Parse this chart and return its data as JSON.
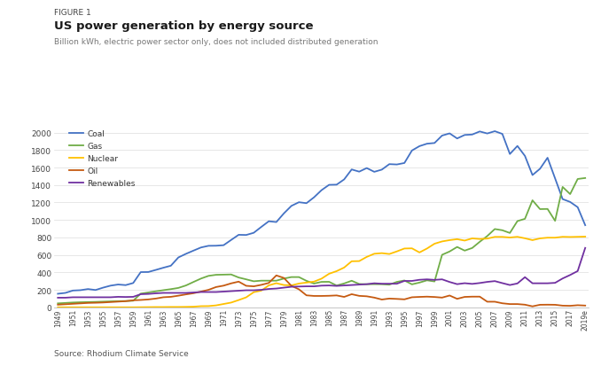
{
  "years": [
    1949,
    1950,
    1951,
    1952,
    1953,
    1954,
    1955,
    1956,
    1957,
    1958,
    1959,
    1960,
    1961,
    1962,
    1963,
    1964,
    1965,
    1966,
    1967,
    1968,
    1969,
    1970,
    1971,
    1972,
    1973,
    1974,
    1975,
    1976,
    1977,
    1978,
    1979,
    1980,
    1981,
    1982,
    1983,
    1984,
    1985,
    1986,
    1987,
    1988,
    1989,
    1990,
    1991,
    1992,
    1993,
    1994,
    1995,
    1996,
    1997,
    1998,
    1999,
    2000,
    2001,
    2002,
    2003,
    2004,
    2005,
    2006,
    2007,
    2008,
    2009,
    2010,
    2011,
    2012,
    2013,
    2014,
    2015,
    2016,
    2017,
    2018,
    "2019e"
  ],
  "coal": [
    155,
    165,
    192,
    196,
    209,
    198,
    225,
    248,
    261,
    254,
    278,
    403,
    404,
    428,
    453,
    476,
    571,
    612,
    649,
    685,
    704,
    705,
    711,
    771,
    830,
    828,
    853,
    920,
    985,
    976,
    1075,
    1161,
    1203,
    1192,
    1259,
    1341,
    1402,
    1404,
    1464,
    1578,
    1553,
    1594,
    1551,
    1576,
    1639,
    1635,
    1652,
    1795,
    1845,
    1873,
    1881,
    1966,
    1991,
    1933,
    1973,
    1978,
    2013,
    1990,
    2016,
    1985,
    1755,
    1847,
    1733,
    1514,
    1586,
    1712,
    1476,
    1239,
    1206,
    1146,
    940
  ],
  "gas": [
    45,
    50,
    55,
    58,
    60,
    62,
    65,
    68,
    70,
    72,
    75,
    157,
    170,
    183,
    196,
    208,
    222,
    250,
    290,
    329,
    360,
    372,
    374,
    376,
    341,
    320,
    298,
    305,
    305,
    305,
    329,
    346,
    346,
    303,
    272,
    291,
    292,
    249,
    273,
    304,
    267,
    264,
    265,
    264,
    259,
    291,
    307,
    263,
    283,
    309,
    296,
    601,
    639,
    691,
    649,
    679,
    750,
    816,
    896,
    882,
    851,
    987,
    1013,
    1225,
    1124,
    1126,
    990,
    1378,
    1296,
    1469,
    1480
  ],
  "nuclear": [
    0,
    0,
    0,
    0,
    0,
    0,
    0,
    0,
    0,
    0,
    0,
    1,
    2,
    3,
    3,
    4,
    4,
    5,
    7,
    13,
    14,
    22,
    38,
    54,
    83,
    114,
    173,
    191,
    251,
    276,
    255,
    251,
    272,
    283,
    294,
    328,
    384,
    414,
    455,
    527,
    529,
    577,
    613,
    620,
    610,
    640,
    673,
    675,
    628,
    673,
    728,
    754,
    769,
    780,
    764,
    789,
    782,
    787,
    806,
    806,
    799,
    807,
    790,
    769,
    789,
    797,
    797,
    807,
    805,
    807,
    809
  ],
  "oil": [
    30,
    35,
    40,
    45,
    50,
    52,
    55,
    60,
    65,
    70,
    80,
    84,
    90,
    100,
    115,
    120,
    133,
    148,
    161,
    180,
    200,
    232,
    248,
    274,
    294,
    246,
    240,
    257,
    279,
    365,
    336,
    246,
    206,
    137,
    130,
    130,
    132,
    136,
    119,
    150,
    131,
    126,
    111,
    89,
    100,
    96,
    91,
    115,
    119,
    122,
    118,
    111,
    135,
    97,
    119,
    122,
    122,
    64,
    64,
    46,
    37,
    37,
    30,
    11,
    29,
    30,
    29,
    19,
    17,
    24,
    20
  ],
  "renewables": [
    110,
    110,
    115,
    115,
    115,
    115,
    115,
    115,
    120,
    118,
    120,
    150,
    153,
    160,
    165,
    165,
    165,
    165,
    170,
    175,
    175,
    175,
    180,
    185,
    190,
    195,
    195,
    200,
    210,
    215,
    225,
    235,
    238,
    240,
    240,
    248,
    250,
    245,
    250,
    255,
    260,
    265,
    275,
    270,
    270,
    270,
    302,
    302,
    315,
    320,
    314,
    320,
    290,
    265,
    276,
    268,
    278,
    291,
    300,
    277,
    255,
    273,
    345,
    275,
    275,
    275,
    280,
    330,
    370,
    415,
    680
  ],
  "colors": {
    "coal": "#4472c4",
    "gas": "#70ad47",
    "nuclear": "#ffc000",
    "oil": "#c55a11",
    "renewables": "#7030a0"
  },
  "title_label": "FIGURE 1",
  "title": "US power generation by energy source",
  "subtitle": "Billion kWh, electric power sector only, does not included distributed generation",
  "source": "Source: Rhodium Climate Service",
  "ylim": [
    0,
    2100
  ],
  "yticks": [
    0,
    200,
    400,
    600,
    800,
    1000,
    1200,
    1400,
    1600,
    1800,
    2000
  ],
  "bg_color": "#ffffff",
  "tick_years": [
    1949,
    1951,
    1953,
    1955,
    1957,
    1959,
    1961,
    1963,
    1965,
    1967,
    1969,
    1971,
    1973,
    1975,
    1977,
    1979,
    1981,
    1983,
    1985,
    1987,
    1989,
    1991,
    1993,
    1995,
    1997,
    1999,
    2001,
    2003,
    2005,
    2007,
    2009,
    2011,
    2013,
    2015,
    2017,
    "2019e"
  ]
}
